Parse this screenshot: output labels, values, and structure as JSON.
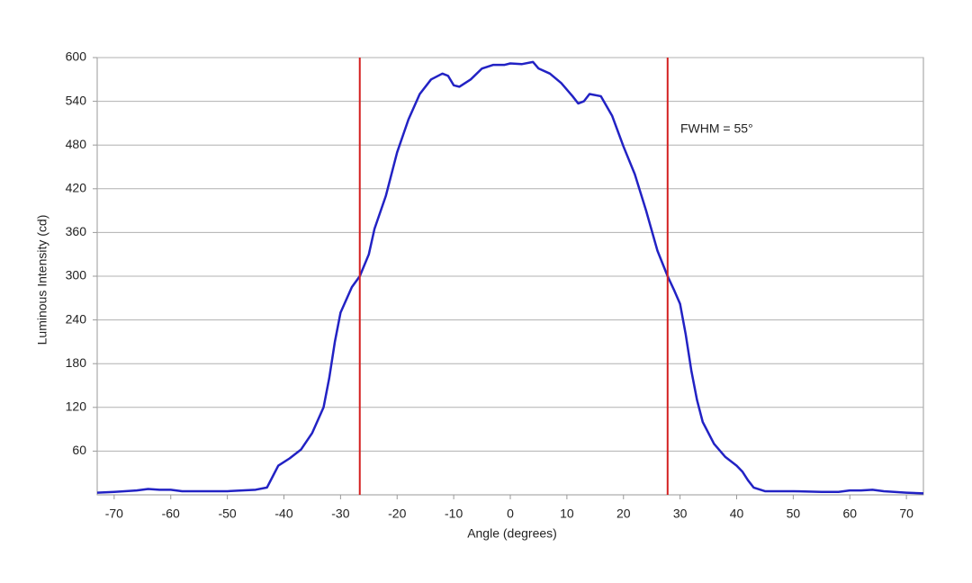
{
  "chart_data": {
    "type": "line",
    "x_label": "Angle (degrees)",
    "y_label": "Luminous Intensity (cd)",
    "annotation": "FWHM = 55°",
    "x": [
      -73,
      -70,
      -66,
      -64,
      -62,
      -60,
      -58,
      -50,
      -45,
      -43,
      -42,
      -41,
      -39,
      -37,
      -35,
      -33,
      -32,
      -31,
      -30,
      -28,
      -26.6,
      -25,
      -24,
      -22,
      -20,
      -18,
      -16,
      -14,
      -12,
      -11,
      -10,
      -9,
      -7,
      -5,
      -3,
      -1,
      0,
      2,
      4,
      5,
      7,
      9,
      11,
      12,
      13,
      14,
      16,
      18,
      20,
      22,
      24,
      26,
      27.8,
      29,
      30,
      31,
      32,
      33,
      34,
      36,
      38,
      40,
      41,
      42,
      43,
      45,
      50,
      55,
      58,
      60,
      62,
      64,
      66,
      70,
      73
    ],
    "values": [
      3,
      4,
      6,
      8,
      7,
      7,
      5,
      5,
      7,
      10,
      25,
      40,
      50,
      62,
      85,
      120,
      160,
      210,
      250,
      285,
      300,
      330,
      365,
      410,
      470,
      515,
      550,
      570,
      578,
      575,
      562,
      560,
      570,
      585,
      590,
      590,
      592,
      591,
      594,
      585,
      578,
      565,
      547,
      537,
      540,
      550,
      547,
      520,
      478,
      440,
      390,
      335,
      300,
      280,
      262,
      220,
      170,
      130,
      100,
      70,
      52,
      40,
      32,
      20,
      10,
      5,
      5,
      4,
      4,
      6,
      6,
      7,
      5,
      3,
      2
    ],
    "color": "#2222c4",
    "vlines": [
      -26.6,
      27.8
    ],
    "vline_color": "#d42020",
    "xlim": [
      -73,
      73
    ],
    "xticks": [
      -70,
      -60,
      -50,
      -40,
      -30,
      -20,
      -10,
      0,
      10,
      20,
      30,
      40,
      50,
      60,
      70
    ],
    "ylim": [
      0,
      600
    ],
    "yticks": [
      60,
      120,
      180,
      240,
      300,
      360,
      420,
      480,
      540,
      600
    ],
    "grid": true
  }
}
